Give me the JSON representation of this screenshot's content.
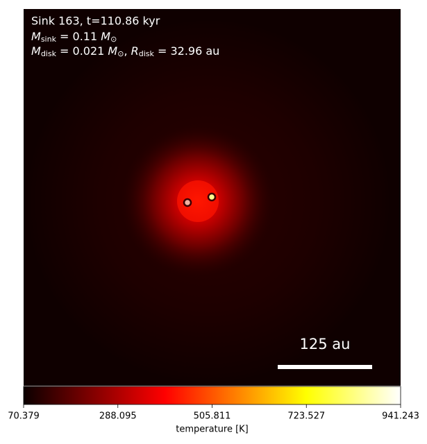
{
  "chart_data": {
    "type": "image",
    "annotations": {
      "title": "Sink 163, t=110.86 kyr",
      "sink_mass": {
        "symbol": "M",
        "subscript": "sink",
        "value": " = 0.11 ",
        "unit": "M",
        "unit_subscript": "⊙"
      },
      "disk": {
        "symbol": "M",
        "subscript": "disk",
        "value": " = 0.021 ",
        "unit": "M",
        "unit_subscript": "⊙",
        "separator": ", ",
        "symbol2": "R",
        "subscript2": "disk",
        "value2": " = 32.96 au"
      }
    },
    "scale_bar_label": "125 au",
    "colorbar": {
      "label": "temperature [K]",
      "colormap": "hot",
      "lim": [
        70.379,
        941.243
      ],
      "ticks": [
        70.379,
        288.095,
        505.811,
        723.527,
        941.243
      ]
    }
  }
}
